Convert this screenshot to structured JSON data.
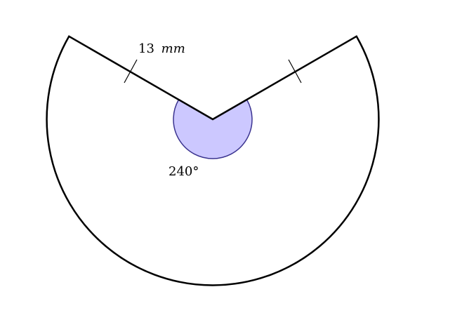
{
  "diagram": {
    "radius_label": {
      "value": "13",
      "unit": "mm"
    },
    "angle_label": "240°",
    "colors": {
      "outline": "#000000",
      "angle_fill": "#ccc8ff",
      "angle_stroke": "#3b3490",
      "background": "#ffffff"
    }
  }
}
